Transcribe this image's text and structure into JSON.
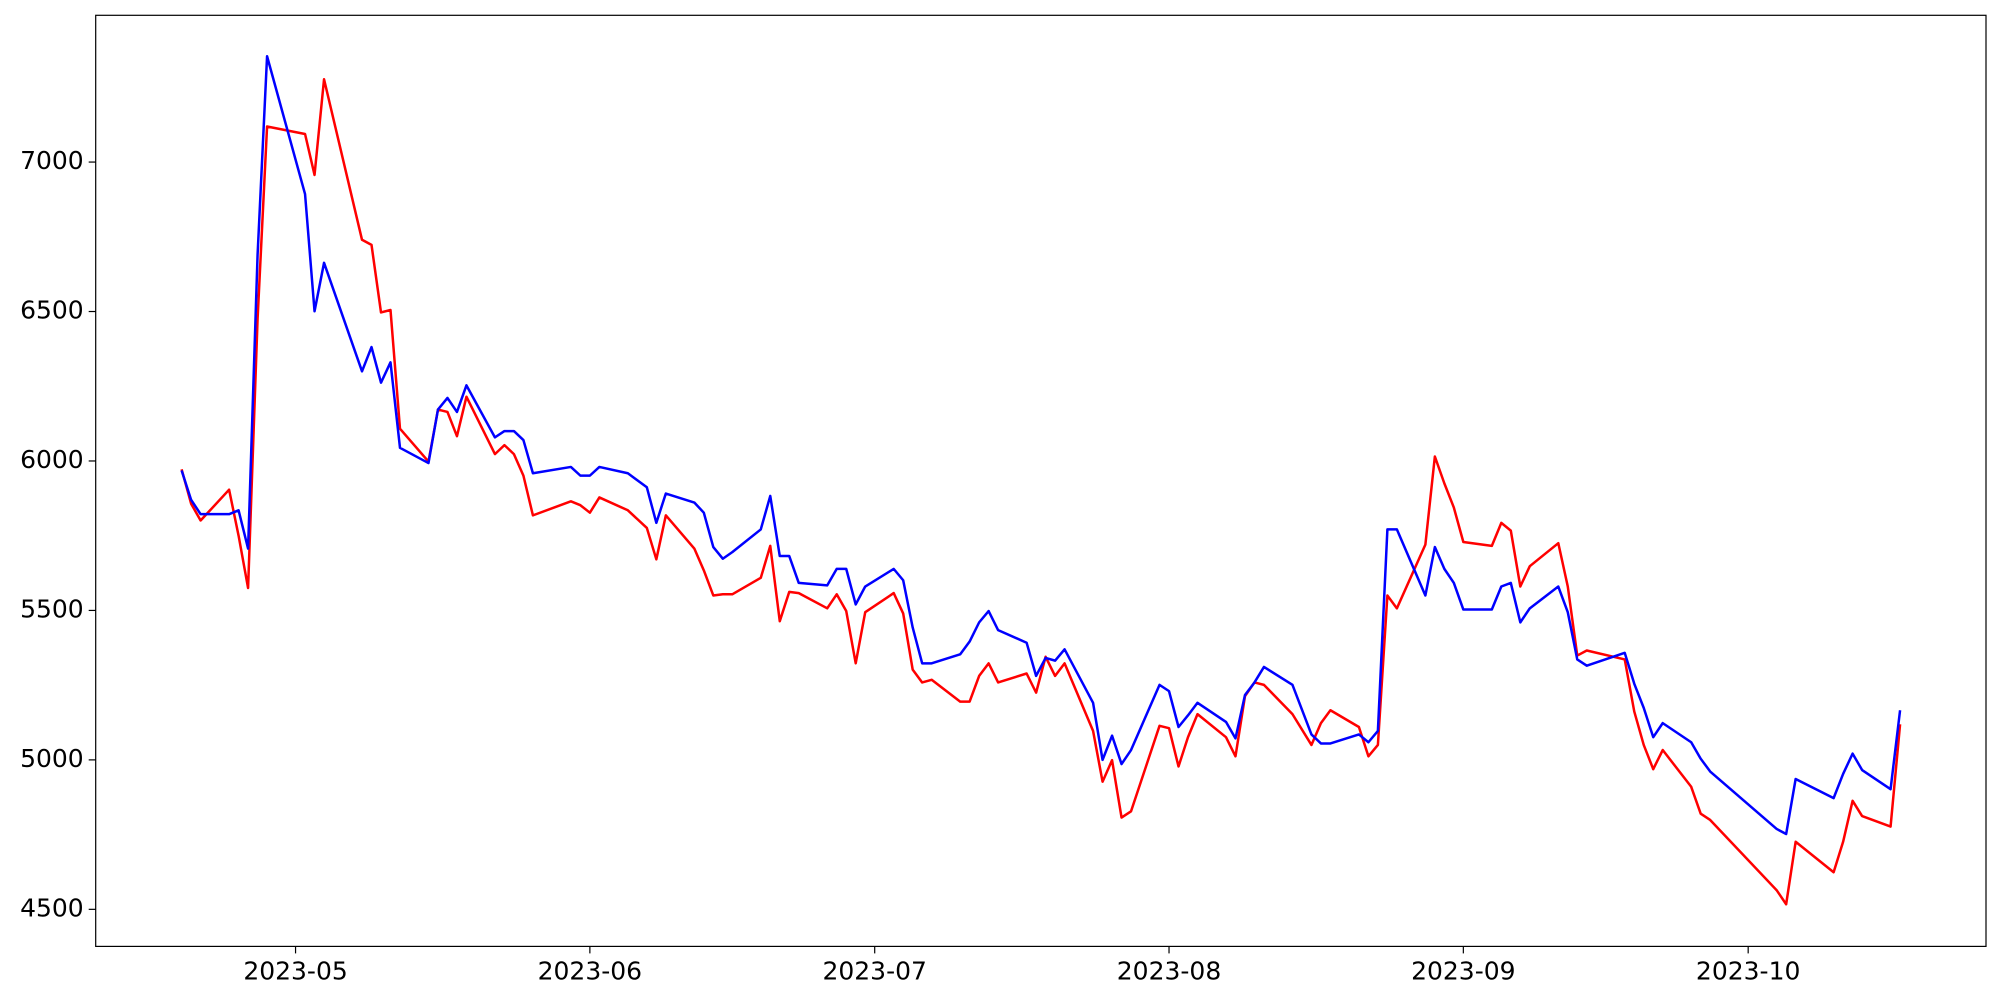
{
  "chart_data": {
    "type": "line",
    "x": [
      109,
      110,
      111,
      112,
      114,
      115,
      116,
      117,
      118,
      122,
      123,
      124,
      128,
      129,
      130,
      131,
      132,
      135,
      136,
      137,
      138,
      139,
      142,
      143,
      144,
      145,
      146,
      150,
      151,
      152,
      153,
      156,
      158,
      159,
      160,
      163,
      164,
      165,
      166,
      167,
      170,
      171,
      172,
      173,
      174,
      177,
      178,
      179,
      180,
      181,
      184,
      185,
      186,
      187,
      188,
      191,
      192,
      193,
      194,
      195,
      198,
      199,
      200,
      201,
      202,
      205,
      206,
      207,
      208,
      209,
      212,
      213,
      214,
      215,
      216,
      219,
      220,
      221,
      222,
      223,
      226,
      228,
      229,
      230,
      233,
      234,
      235,
      236,
      237,
      240,
      241,
      242,
      243,
      244,
      247,
      248,
      249,
      250,
      251,
      254,
      255,
      256,
      257,
      261,
      262,
      263,
      264,
      265,
      268,
      269,
      270,
      277,
      278,
      279,
      283,
      284,
      285,
      286,
      289,
      290
    ],
    "series": [
      {
        "color": "#ff0000",
        "values": [
          5972,
          5857,
          5801,
          5835,
          5904,
          5750,
          5575,
          6475,
          7119,
          7094,
          6957,
          7277,
          6740,
          6723,
          6497,
          6505,
          6108,
          5998,
          6172,
          6164,
          6083,
          6215,
          6023,
          6053,
          6023,
          5951,
          5818,
          5865,
          5852,
          5827,
          5878,
          5835,
          5776,
          5671,
          5818,
          5707,
          5634,
          5550,
          5554,
          5554,
          5609,
          5716,
          5464,
          5562,
          5558,
          5507,
          5554,
          5498,
          5323,
          5494,
          5558,
          5490,
          5302,
          5259,
          5268,
          5195,
          5195,
          5281,
          5323,
          5259,
          5289,
          5225,
          5345,
          5281,
          5323,
          5097,
          4927,
          4999,
          4807,
          4828,
          5114,
          5106,
          4978,
          5076,
          5153,
          5076,
          5012,
          5213,
          5259,
          5251,
          5153,
          5050,
          5123,
          5166,
          5110,
          5012,
          5050,
          5550,
          5507,
          5720,
          6015,
          5925,
          5844,
          5729,
          5716,
          5793,
          5767,
          5580,
          5648,
          5725,
          5580,
          5349,
          5366,
          5336,
          5162,
          5050,
          4969,
          5033,
          4910,
          4820,
          4799,
          4564,
          4517,
          4726,
          4624,
          4726,
          4863,
          4812,
          4777,
          5119
        ]
      },
      {
        "color": "#0000ff",
        "values": [
          5968,
          5870,
          5822,
          5822,
          5822,
          5835,
          5707,
          6690,
          7354,
          6893,
          6501,
          6663,
          6300,
          6381,
          6262,
          6330,
          6044,
          5993,
          6172,
          6211,
          6164,
          6253,
          6079,
          6100,
          6100,
          6070,
          5959,
          5980,
          5951,
          5951,
          5980,
          5959,
          5912,
          5793,
          5891,
          5861,
          5827,
          5712,
          5673,
          5695,
          5771,
          5883,
          5682,
          5682,
          5592,
          5584,
          5639,
          5639,
          5520,
          5580,
          5639,
          5601,
          5443,
          5323,
          5323,
          5353,
          5396,
          5460,
          5498,
          5434,
          5392,
          5281,
          5341,
          5332,
          5370,
          5191,
          5000,
          5081,
          4986,
          5033,
          5251,
          5230,
          5110,
          5149,
          5191,
          5127,
          5072,
          5217,
          5259,
          5311,
          5251,
          5085,
          5055,
          5055,
          5085,
          5059,
          5097,
          5771,
          5771,
          5550,
          5712,
          5639,
          5592,
          5503,
          5503,
          5580,
          5592,
          5460,
          5507,
          5580,
          5494,
          5336,
          5315,
          5358,
          5255,
          5174,
          5076,
          5123,
          5059,
          5004,
          4961,
          4769,
          4752,
          4936,
          4872,
          4953,
          5021,
          4966,
          4902,
          5166
        ]
      }
    ],
    "xlim": [
      99.95,
      299.05
    ],
    "xticks": [
      {
        "value": 121,
        "label": "2023-05"
      },
      {
        "value": 152,
        "label": "2023-06"
      },
      {
        "value": 182,
        "label": "2023-07"
      },
      {
        "value": 213,
        "label": "2023-08"
      },
      {
        "value": 244,
        "label": "2023-09"
      },
      {
        "value": 274,
        "label": "2023-10"
      }
    ],
    "ylim": [
      4376,
      7491
    ],
    "yticks": [
      4500,
      5000,
      5500,
      6000,
      6500,
      7000
    ]
  }
}
